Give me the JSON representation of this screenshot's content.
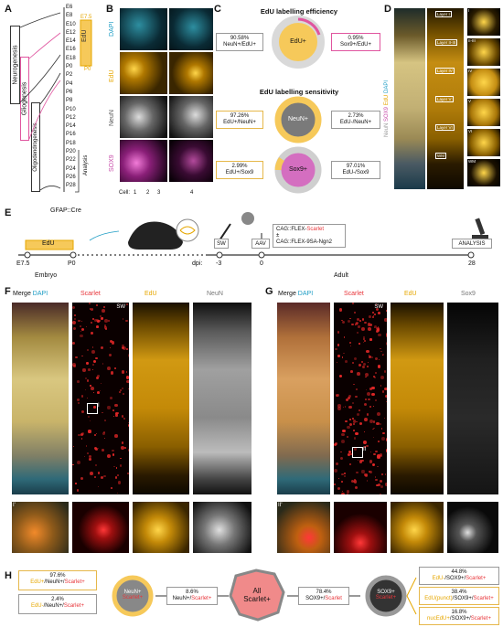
{
  "panels": {
    "a": "A",
    "b": "B",
    "c": "C",
    "d": "D",
    "e": "E",
    "f": "F",
    "g": "G",
    "h": "H"
  },
  "panel_a": {
    "stages": [
      "E6",
      "E8",
      "E10",
      "E12",
      "E14",
      "E16",
      "E18",
      "P0",
      "P2",
      "P4",
      "P6",
      "P8",
      "P10",
      "P12",
      "P14",
      "P16",
      "P18",
      "P20",
      "P22",
      "P24",
      "P26",
      "P28"
    ],
    "edu_label": "EdU",
    "edu_start": "E7.5",
    "edu_end": "P0",
    "neurogenesis": "Neurogenesis",
    "gliogenesis": "Gliogenesis",
    "oligodendrogenesis": "Oligodendrogenesis",
    "analysis": "Analysis"
  },
  "panel_b": {
    "row_labels": [
      "DAPI",
      "EdU",
      "NeuN",
      "SOX9"
    ],
    "cell_label": "Cell:",
    "cell_numbers": [
      "1",
      "2",
      "3",
      "4"
    ]
  },
  "panel_c": {
    "title1": "EdU labelling efficiency",
    "title2": "EdU labelling sensitivity",
    "circle_edu": "EdU+",
    "circle_neun": "NeuN+",
    "circle_sox9": "Sox9+",
    "eff_left_pct": "90.58%",
    "eff_left_sub": "NeuN+/EdU+",
    "eff_right_pct": "0.95%",
    "eff_right_sub": "Sox9+/EdU+",
    "neun_left_pct": "97.26%",
    "neun_left_sub": "EdU+/NeuN+",
    "neun_right_pct": "2.73%",
    "neun_right_sub": "EdU-/NeuN+",
    "sox_left_pct": "2.99%",
    "sox_left_sub": "EdU+/Sox9",
    "sox_right_pct": "97.01%",
    "sox_right_sub": "EdU-/Sox9"
  },
  "panel_d": {
    "side_label": "NeuN SOX9 EdU DAPI",
    "layers": [
      "Layer I",
      "Layer II-III",
      "Layer IV",
      "Layer V",
      "Layer VI",
      "WM"
    ],
    "crops": [
      "I",
      "II-III",
      "IV",
      "V",
      "VI",
      "WM"
    ]
  },
  "panel_e": {
    "cre": "GFAP::Cre",
    "edu": "EdU",
    "times": [
      "E7.5",
      "P0"
    ],
    "embryo": "Embryo",
    "dpi": "dpi:",
    "dpi_vals": [
      "-3",
      "0",
      "28"
    ],
    "adult": "Adult",
    "sw": "SW",
    "aav": "AAV",
    "construct1_a": "CAG::FLEX-",
    "construct1_b": "Scarlet",
    "construct_or": "±",
    "construct2": "CAG::FLEX-9SA-Ngn2",
    "analysis": "ANALYSIS"
  },
  "panel_f": {
    "titles": [
      "Merge",
      "DAPI",
      "Scarlet",
      "EdU",
      "NeuN"
    ],
    "sw": "SW",
    "inset": "I",
    "inset_b": "I'"
  },
  "panel_g": {
    "titles": [
      "Merge",
      "DAPI",
      "Scarlet",
      "EdU",
      "Sox9"
    ],
    "sw": "SW",
    "inset": "II",
    "inset_b": "II'"
  },
  "panel_h": {
    "left_pct1": "97.6%",
    "left_sub1_a": "EdU+",
    "left_sub1_b": "/NeuN+/",
    "left_sub1_c": "Scarlet+",
    "left_pct2": "2.4%",
    "left_sub2_a": "EdU-",
    "left_sub2_b": "/NeuN+/",
    "left_sub2_c": "Scarlet+",
    "neun_circle_a": "NeuN+",
    "neun_circle_b": "Scarlet+",
    "mid1_pct": "8.6%",
    "mid1_sub_a": "NeuN+/",
    "mid1_sub_b": "Scarlet+",
    "all_a": "All",
    "all_b": "Scarlet+",
    "mid2_pct": "78.4%",
    "mid2_sub_a": "SOX9+/",
    "mid2_sub_b": "Scarlet",
    "sox_circle_a": "SOX9+",
    "sox_circle_b": "Scarlet+",
    "r1_pct": "44.8%",
    "r1_a": "EdU-",
    "r1_b": "/SOX9+/",
    "r1_c": "Scarlet+",
    "r2_pct": "38.4%",
    "r2_a": "EdU(punct)",
    "r2_b": "/SOX9+/",
    "r2_c": "Scarlet+",
    "r3_pct": "16.8%",
    "r3_a": "nucEdU+",
    "r3_b": "/SOX9+/",
    "r3_c": "Scarlet+"
  },
  "colors": {
    "edu": "#e6a700",
    "scarlet": "#e8353a",
    "sox9": "#c64aa8",
    "dapi": "#1c9cc4",
    "neun_gray": "#888888"
  }
}
